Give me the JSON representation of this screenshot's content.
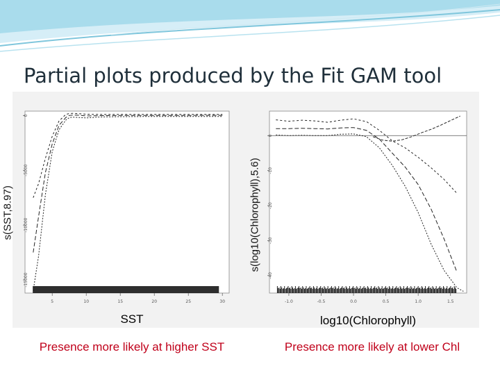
{
  "slide": {
    "title": "Partial plots produced by the Fit GAM tool"
  },
  "colors": {
    "caption": "#c0001a",
    "banner": "#8fd3e6"
  },
  "chart_data": [
    {
      "type": "line",
      "xlabel": "SST",
      "ylabel": "s(SST,8.97)",
      "xticks": [
        "5",
        "10",
        "15",
        "20",
        "25",
        "30"
      ],
      "yticks": [
        "0",
        "-5000",
        "-10000",
        "-15000"
      ],
      "xlim": [
        1,
        31
      ],
      "ylim": [
        -16200,
        400
      ],
      "rug": "dense",
      "series": [
        {
          "x": [
            2.2,
            3,
            4,
            5,
            6,
            7,
            7.5,
            8,
            9,
            10,
            11,
            12,
            15,
            20,
            25,
            30
          ],
          "values": [
            -12500,
            -9200,
            -5200,
            -2600,
            -900,
            -180,
            0,
            40,
            20,
            -40,
            -30,
            -10,
            0,
            5,
            10,
            15
          ]
        },
        {
          "x": [
            2.2,
            3,
            4,
            5,
            6,
            7,
            7.5,
            8,
            9,
            10,
            11,
            12,
            15,
            20,
            25,
            30
          ],
          "values": [
            -7500,
            -6200,
            -3900,
            -1900,
            -500,
            100,
            180,
            200,
            160,
            120,
            110,
            100,
            100,
            100,
            100,
            100
          ]
        },
        {
          "x": [
            2.2,
            3,
            4,
            5,
            6,
            7,
            7.5,
            8,
            9,
            10,
            11,
            12,
            15,
            20,
            25,
            30
          ],
          "values": [
            -16000,
            -12800,
            -7200,
            -3300,
            -1300,
            -420,
            -200,
            -150,
            -190,
            -220,
            -180,
            -130,
            -110,
            -90,
            -90,
            -90
          ]
        }
      ]
    },
    {
      "type": "line",
      "xlabel": "log10(Chlorophyll)",
      "ylabel": "s(log10(Chlorophyll),5.6)",
      "xticks": [
        "-1.0",
        "-0.5",
        "0.0",
        "0.5",
        "1.0",
        "1.5"
      ],
      "yticks": [
        "0",
        "-10",
        "-20",
        "-30",
        "-40"
      ],
      "xlim": [
        -1.3,
        1.75
      ],
      "ylim": [
        -45,
        7
      ],
      "hline": 0,
      "rug": "dense",
      "series": [
        {
          "x": [
            -1.2,
            -1.0,
            -0.8,
            -0.6,
            -0.4,
            -0.2,
            0.0,
            0.2,
            0.4,
            0.6,
            0.8,
            1.0,
            1.2,
            1.4,
            1.6
          ],
          "values": [
            2.0,
            2.0,
            2.1,
            2.0,
            1.9,
            2.2,
            2.3,
            1.5,
            -1.0,
            -5.0,
            -9.0,
            -14.0,
            -21.0,
            -29.5,
            -39.0
          ]
        },
        {
          "x": [
            -1.2,
            -1.0,
            -0.8,
            -0.6,
            -0.4,
            -0.2,
            0.0,
            0.2,
            0.4,
            0.6,
            0.8,
            1.0,
            1.2,
            1.4,
            1.6
          ],
          "values": [
            4.5,
            4.1,
            4.4,
            4.2,
            3.8,
            4.4,
            4.8,
            4.0,
            1.5,
            -1.5,
            -3.5,
            -6.2,
            -9.2,
            -12.5,
            -16.5
          ]
        },
        {
          "x": [
            -1.2,
            -1.0,
            -0.8,
            -0.6,
            -0.4,
            -0.2,
            0.0,
            0.2,
            0.4,
            0.6,
            0.8,
            1.0,
            1.2,
            1.4,
            1.6,
            1.7
          ],
          "values": [
            0.2,
            0.0,
            0.1,
            0.0,
            0.0,
            0.4,
            0.5,
            -0.3,
            -3.5,
            -8.5,
            -14.5,
            -22.0,
            -31.0,
            -38.5,
            -43.5,
            -44.5
          ]
        },
        {
          "x": [
            0.3,
            0.45,
            0.6,
            0.75,
            0.9,
            1.05,
            1.2,
            1.35,
            1.5,
            1.65
          ],
          "values": [
            -0.3,
            -1.3,
            -1.6,
            -1.2,
            -0.3,
            0.8,
            1.8,
            3.0,
            4.3,
            5.6
          ]
        }
      ]
    }
  ],
  "captions": {
    "left": "Presence more likely at higher SST",
    "right": "Presence more likely at lower Chl"
  }
}
